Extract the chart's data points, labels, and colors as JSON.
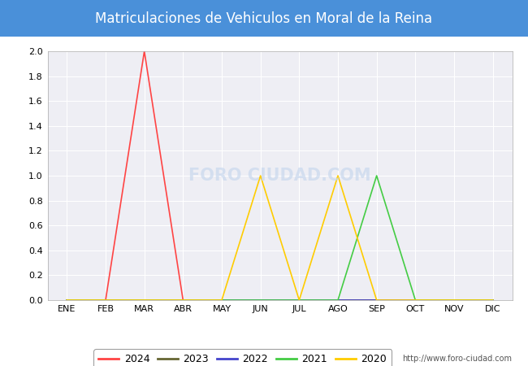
{
  "title": "Matriculaciones de Vehiculos en Moral de la Reina",
  "title_bg_color": "#4a90d9",
  "title_text_color": "white",
  "watermark_url": "http://www.foro-ciudad.com",
  "watermark_text": "FORO CIUDAD.COM",
  "months": [
    "ENE",
    "FEB",
    "MAR",
    "ABR",
    "MAY",
    "JUN",
    "JUL",
    "AGO",
    "SEP",
    "OCT",
    "NOV",
    "DIC"
  ],
  "ylim": [
    0.0,
    2.0
  ],
  "yticks": [
    0.0,
    0.2,
    0.4,
    0.6,
    0.8,
    1.0,
    1.2,
    1.4,
    1.6,
    1.8,
    2.0
  ],
  "series": {
    "2024": {
      "color": "#ff4444",
      "data": [
        0,
        0,
        2,
        0,
        0,
        0,
        0,
        0,
        0,
        0,
        0,
        0
      ]
    },
    "2023": {
      "color": "#666633",
      "data": [
        0,
        0,
        0,
        0,
        0,
        0,
        0,
        0,
        0,
        0,
        0,
        0
      ]
    },
    "2022": {
      "color": "#4444cc",
      "data": [
        0,
        0,
        0,
        0,
        0,
        0,
        0,
        0,
        0,
        0,
        0,
        0
      ]
    },
    "2021": {
      "color": "#44cc44",
      "data": [
        0,
        0,
        0,
        0,
        0,
        0,
        0,
        0,
        1,
        0,
        0,
        0
      ]
    },
    "2020": {
      "color": "#ffcc00",
      "data": [
        0,
        0,
        0,
        0,
        0,
        1,
        0,
        1,
        0,
        0,
        0,
        0
      ]
    }
  },
  "legend_order": [
    "2024",
    "2023",
    "2022",
    "2021",
    "2020"
  ],
  "outer_bg": "#ffffff",
  "plot_bg_color": "#eeeef4",
  "grid_color": "#ffffff",
  "title_fontsize": 12,
  "tick_fontsize": 8,
  "legend_fontsize": 9
}
